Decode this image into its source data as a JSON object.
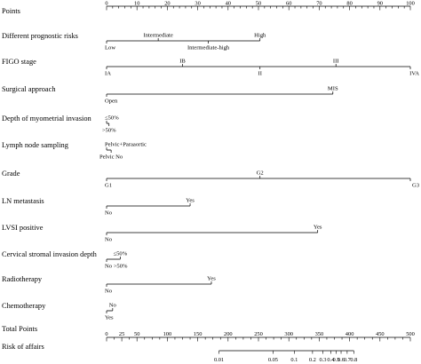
{
  "chart_data": {
    "type": "nomogram",
    "title": "",
    "points_axis": {
      "label": "Points",
      "min": 0,
      "max": 100,
      "labeled_ticks": [
        0,
        10,
        20,
        30,
        40,
        50,
        60,
        70,
        80,
        90,
        100
      ],
      "minor_step": 2
    },
    "variables": [
      {
        "name": "Different prognostic risks",
        "levels": [
          {
            "label": "Low",
            "points": 0,
            "label_pos": "below"
          },
          {
            "label": "Intermediate",
            "points": 17,
            "label_pos": "above"
          },
          {
            "label": "Intermediate-high",
            "points": 33.5,
            "label_pos": "below"
          },
          {
            "label": "High",
            "points": 50.5,
            "label_pos": "above"
          }
        ]
      },
      {
        "name": "FIGO stage",
        "levels": [
          {
            "label": "IA",
            "points": 0,
            "label_pos": "below"
          },
          {
            "label": "IB",
            "points": 25,
            "label_pos": "above"
          },
          {
            "label": "II",
            "points": 50.5,
            "label_pos": "below"
          },
          {
            "label": "III",
            "points": 75.5,
            "label_pos": "above"
          },
          {
            "label": "IVA",
            "points": 100,
            "label_pos": "below"
          }
        ]
      },
      {
        "name": "Surgical approach",
        "levels": [
          {
            "label": "Open",
            "points": 0,
            "label_pos": "below"
          },
          {
            "label": "MIS",
            "points": 74.5,
            "label_pos": "above"
          }
        ]
      },
      {
        "name": "Depth of myometrial invasion",
        "levels": [
          {
            "label": "≤50%",
            "points": 0,
            "label_pos": "above"
          },
          {
            "label": ">50%",
            "points": 0.8,
            "label_pos": "below"
          }
        ]
      },
      {
        "name": "Lymph node sampling",
        "levels": [
          {
            "label": "Pelvic+Paraaortic",
            "points": 0,
            "label_pos": "above"
          },
          {
            "label": "Pelvic No",
            "points": 1.5,
            "label_pos": "below"
          }
        ]
      },
      {
        "name": "Grade",
        "levels": [
          {
            "label": "G1",
            "points": 0,
            "label_pos": "below"
          },
          {
            "label": "G2",
            "points": 50.5,
            "label_pos": "above"
          },
          {
            "label": "G3",
            "points": 100,
            "label_pos": "below"
          }
        ]
      },
      {
        "name": "LN metastasis",
        "levels": [
          {
            "label": "No",
            "points": 0,
            "label_pos": "below"
          },
          {
            "label": "Yes",
            "points": 27.5,
            "label_pos": "above"
          }
        ]
      },
      {
        "name": "LVSI positive",
        "levels": [
          {
            "label": "No",
            "points": 0,
            "label_pos": "below"
          },
          {
            "label": "Yes",
            "points": 69.5,
            "label_pos": "above"
          }
        ]
      },
      {
        "name": "Cervical stromal invasion depth",
        "levels": [
          {
            "label": "≤50%",
            "points": 4.5,
            "label_pos": "above"
          },
          {
            "label": "No >50%",
            "points": 0,
            "label_pos": "below"
          }
        ]
      },
      {
        "name": "Radiotherapy",
        "levels": [
          {
            "label": "No",
            "points": 0,
            "label_pos": "below"
          },
          {
            "label": "Yes",
            "points": 34.5,
            "label_pos": "above"
          }
        ]
      },
      {
        "name": "Chemotherapy",
        "levels": [
          {
            "label": "No",
            "points": 2,
            "label_pos": "above"
          },
          {
            "label": "Yes",
            "points": 0,
            "label_pos": "below"
          }
        ]
      }
    ],
    "total_points_axis": {
      "label": "Total Points",
      "min": 0,
      "max": 500,
      "labeled_ticks": [
        0,
        25,
        50,
        100,
        150,
        200,
        250,
        300,
        350,
        400,
        450,
        500
      ],
      "minor_step": 12.5
    },
    "risk_axis": {
      "label": "Risk of affairs",
      "ticks": [
        {
          "label": "0.01",
          "total_points": 185
        },
        {
          "label": "0.05",
          "total_points": 274
        },
        {
          "label": "0.1",
          "total_points": 309
        },
        {
          "label": "0.2",
          "total_points": 339
        },
        {
          "label": "0.3",
          "total_points": 356
        },
        {
          "label": "0.4",
          "total_points": 369
        },
        {
          "label": "0.5",
          "total_points": 378
        },
        {
          "label": "0.6",
          "total_points": 386
        },
        {
          "label": "0.7",
          "total_points": 396
        },
        {
          "label": "0.8",
          "total_points": 407
        }
      ]
    }
  }
}
